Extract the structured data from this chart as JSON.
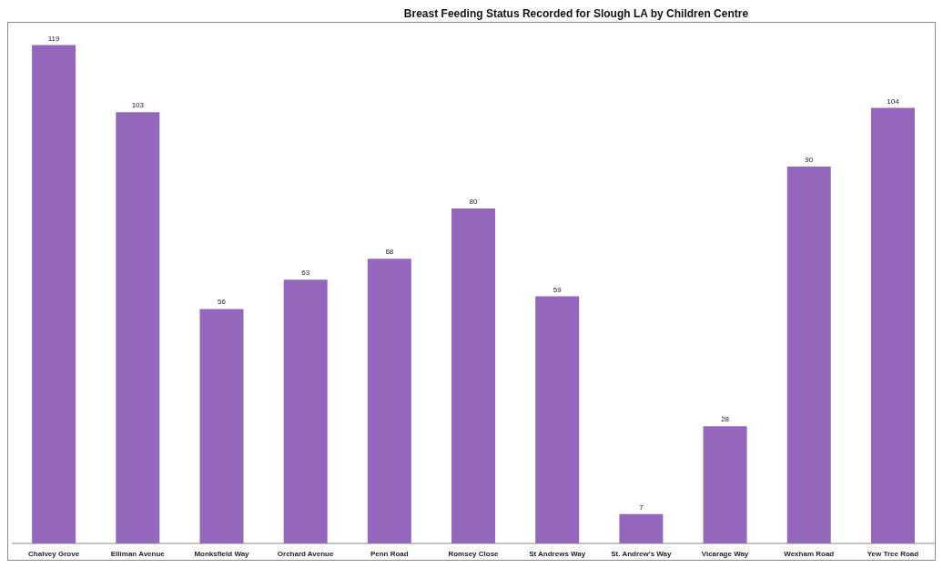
{
  "chart_data": {
    "type": "bar",
    "title": "Breast Feeding Status Recorded for Slough LA by Children Centre",
    "categories": [
      "Chalvey Grove",
      "Elliman Avenue",
      "Monksfield Way",
      "Orchard Avenue",
      "Penn Road",
      "Romsey Close",
      "St Andrews Way",
      "St. Andrew's Way",
      "Vicarage Way",
      "Wexham Road",
      "Yew Tree Road"
    ],
    "values": [
      119,
      103,
      56,
      63,
      68,
      80,
      59,
      7,
      28,
      90,
      104
    ],
    "color": "#9467bd",
    "data_labels": true
  }
}
